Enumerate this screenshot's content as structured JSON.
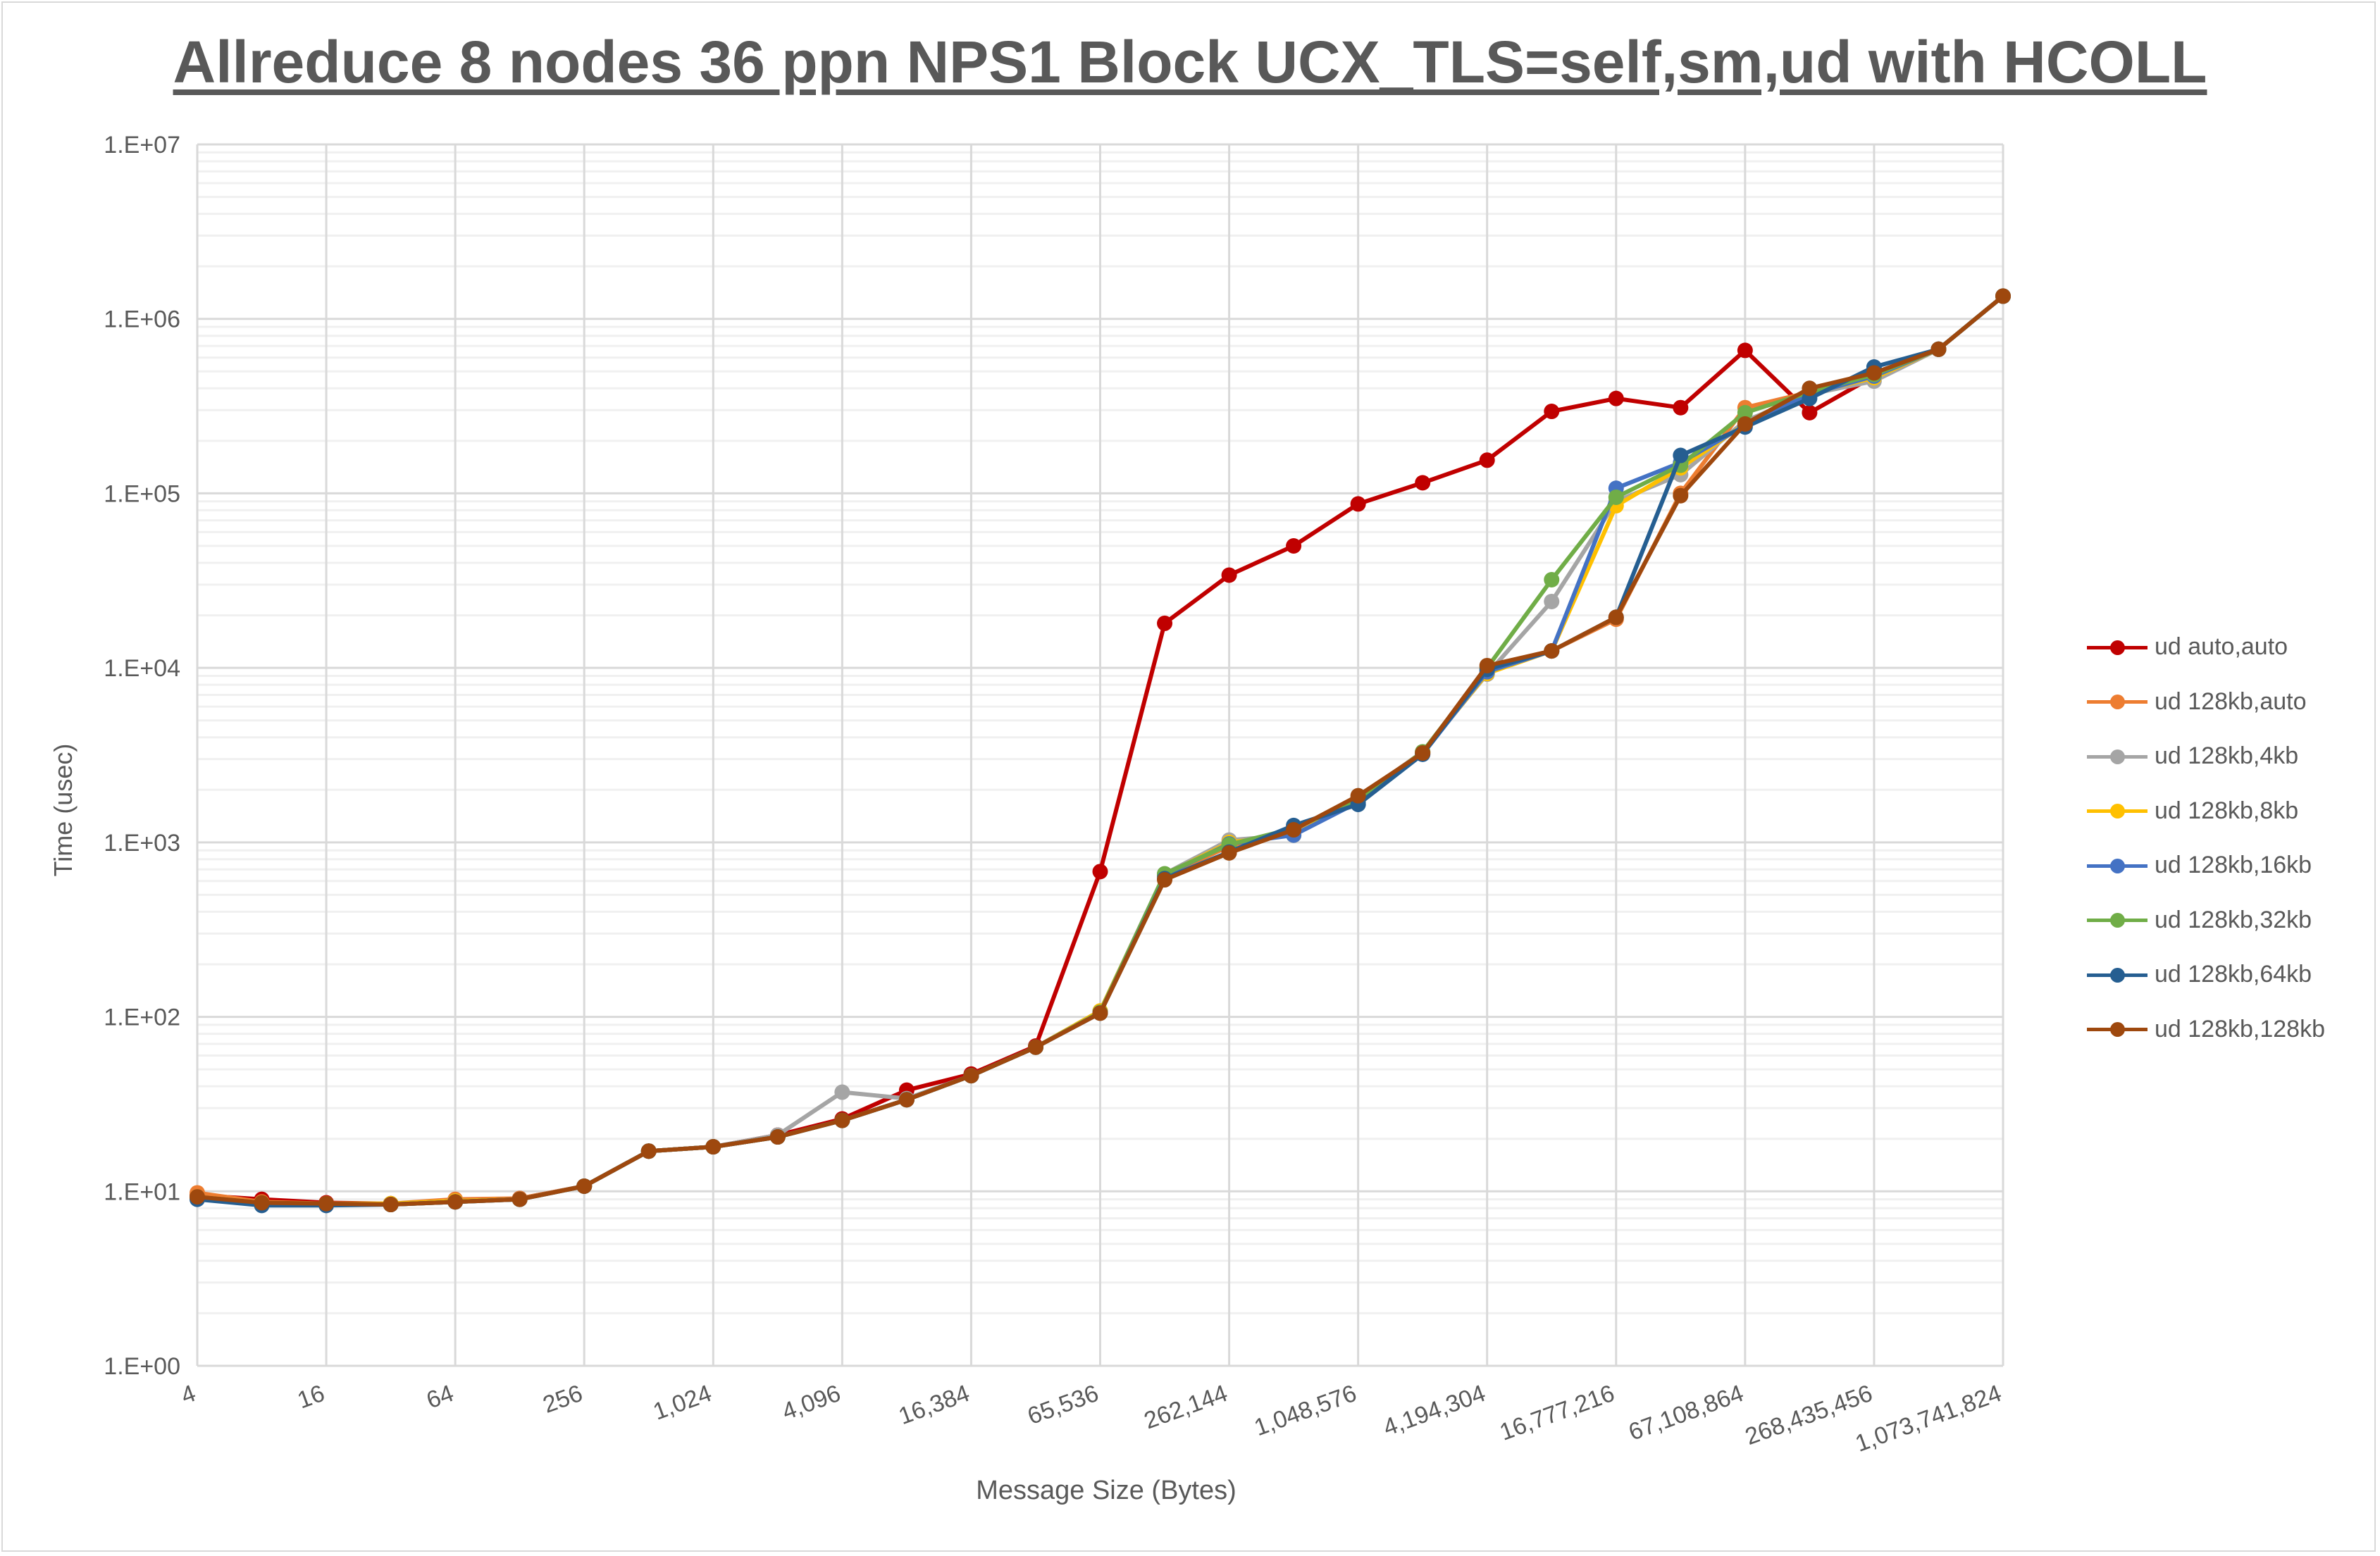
{
  "chart_data": {
    "type": "line",
    "title": "Allreduce 8 nodes 36 ppn NPS1 Block UCX_TLS=self,sm,ud with HCOLL",
    "xlabel": "Message Size (Bytes)",
    "ylabel": "Time (usec)",
    "x_scale": "log2",
    "y_scale": "log10",
    "ylim": [
      1,
      10000000
    ],
    "grid": true,
    "legend_position": "right",
    "x": [
      4,
      8,
      16,
      32,
      64,
      128,
      256,
      512,
      1024,
      2048,
      4096,
      8192,
      16384,
      32768,
      65536,
      131072,
      262144,
      524288,
      1048576,
      2097152,
      4194304,
      8388608,
      16777216,
      33554432,
      67108864,
      134217728,
      268435456,
      536870912,
      1073741824
    ],
    "x_tick_labels": [
      "4",
      "16",
      "64",
      "256",
      "1,024",
      "4,096",
      "16,384",
      "65,536",
      "262,144",
      "1,048,576",
      "4,194,304",
      "16,777,216",
      "67,108,864",
      "268,435,456",
      "1,073,741,824"
    ],
    "y_tick_labels": [
      "1.E+00",
      "1.E+01",
      "1.E+02",
      "1.E+03",
      "1.E+04",
      "1.E+05",
      "1.E+06",
      "1.E+07"
    ],
    "series": [
      {
        "name": "ud auto,auto",
        "color": "#C00000",
        "values": [
          9.5,
          9,
          8.6,
          8.5,
          8.8,
          9.1,
          10.7,
          17,
          18,
          21,
          26,
          38,
          47,
          68,
          680,
          18000,
          34000,
          50000,
          87000,
          115000,
          155000,
          295000,
          350000,
          310000,
          660000,
          290000,
          470000,
          670000,
          1350000
        ]
      },
      {
        "name": "ud 128kb,auto",
        "color": "#ED7D31",
        "values": [
          9.8,
          8.7,
          8.5,
          8.5,
          9,
          9.1,
          10.7,
          17,
          18,
          20.5,
          25.5,
          33.5,
          46,
          67,
          108,
          640,
          950,
          1150,
          1800,
          3300,
          9600,
          12500,
          19000,
          100000,
          310000,
          380000,
          470000,
          670000,
          1350000
        ]
      },
      {
        "name": "ud 128kb,4kb",
        "color": "#A5A5A5",
        "values": [
          9.3,
          8.6,
          8.5,
          8.5,
          8.8,
          9,
          10.7,
          17,
          18,
          21,
          37,
          34,
          46,
          67,
          108,
          660,
          1030,
          1100,
          1800,
          3300,
          9200,
          24000,
          90000,
          128000,
          260000,
          370000,
          440000,
          670000,
          1350000
        ]
      },
      {
        "name": "ud 128kb,8kb",
        "color": "#FFC000",
        "values": [
          9.3,
          8.6,
          8.5,
          8.5,
          8.8,
          9,
          10.7,
          17,
          18,
          20.5,
          25.5,
          33.5,
          46,
          67,
          108,
          650,
          1000,
          1100,
          1750,
          3250,
          9300,
          12500,
          85000,
          140000,
          250000,
          375000,
          460000,
          670000,
          1350000
        ]
      },
      {
        "name": "ud 128kb,16kb",
        "color": "#4472C4",
        "values": [
          9.2,
          8.5,
          8.4,
          8.4,
          8.7,
          9,
          10.7,
          17,
          18,
          20.5,
          25.5,
          33.5,
          46,
          67,
          106,
          650,
          980,
          1100,
          1700,
          3200,
          9500,
          12500,
          107000,
          150000,
          245000,
          370000,
          470000,
          670000,
          1350000
        ]
      },
      {
        "name": "ud 128kb,32kb",
        "color": "#70AD47",
        "values": [
          9.2,
          8.5,
          8.4,
          8.4,
          8.7,
          9,
          10.7,
          17,
          18,
          20.5,
          25.5,
          33.5,
          46,
          67,
          106,
          660,
          970,
          1200,
          1750,
          3300,
          10000,
          32000,
          95000,
          145000,
          290000,
          380000,
          480000,
          670000,
          1350000
        ]
      },
      {
        "name": "ud 128kb,64kb",
        "color": "#255E91",
        "values": [
          9,
          8.3,
          8.3,
          8.4,
          8.7,
          9,
          10.7,
          17,
          18,
          20.5,
          25.5,
          33.5,
          46,
          67,
          105,
          620,
          880,
          1250,
          1650,
          3200,
          9800,
          12500,
          19500,
          165000,
          240000,
          350000,
          530000,
          670000,
          1350000
        ]
      },
      {
        "name": "ud 128kb,128kb",
        "color": "#9E480E",
        "values": [
          9.3,
          8.6,
          8.5,
          8.4,
          8.7,
          9,
          10.7,
          17,
          18,
          20.5,
          25.5,
          33.5,
          46,
          67,
          105,
          610,
          870,
          1180,
          1850,
          3250,
          10300,
          12500,
          19500,
          97000,
          250000,
          400000,
          490000,
          670000,
          1350000
        ]
      }
    ]
  }
}
